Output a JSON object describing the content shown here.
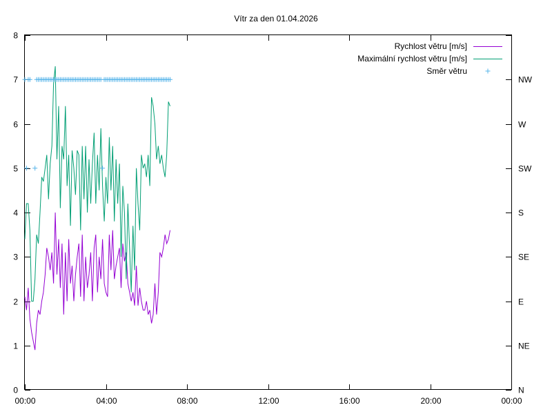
{
  "chart_data": {
    "type": "line",
    "title": "Vítr za den 01.04.2026",
    "xlabel": "",
    "ylabel": "",
    "grid": false,
    "legend_position": "top-right",
    "x_unit": "minutes since 00:00",
    "xlim": [
      0,
      1440
    ],
    "ylim": [
      0,
      8
    ],
    "x_ticks": [
      "00:00",
      "04:00",
      "08:00",
      "12:00",
      "16:00",
      "20:00",
      "00:00"
    ],
    "y_ticks": [
      "0",
      "1",
      "2",
      "3",
      "4",
      "5",
      "6",
      "7",
      "8"
    ],
    "y2_ticks": [
      "N",
      "NE",
      "E",
      "SE",
      "S",
      "SW",
      "W",
      "NW"
    ],
    "series": [
      {
        "name": "Rychlost větru [m/s]",
        "color": "#9400d3",
        "style": "line",
        "x": [
          0,
          5,
          10,
          15,
          20,
          25,
          30,
          35,
          40,
          45,
          50,
          55,
          60,
          65,
          70,
          75,
          80,
          85,
          90,
          95,
          100,
          105,
          110,
          115,
          120,
          125,
          130,
          135,
          140,
          145,
          150,
          155,
          160,
          165,
          170,
          175,
          180,
          185,
          190,
          195,
          200,
          205,
          210,
          215,
          220,
          225,
          230,
          235,
          240,
          245,
          250,
          255,
          260,
          265,
          270,
          275,
          280,
          285,
          290,
          295,
          300,
          305,
          310,
          315,
          320,
          325,
          330,
          335,
          340,
          345,
          350,
          355,
          360,
          365,
          370,
          375,
          380,
          385,
          390,
          395,
          400,
          405,
          410,
          415,
          420,
          425,
          430
        ],
        "y": [
          2.1,
          1.8,
          2.3,
          1.6,
          1.3,
          1.1,
          0.9,
          1.5,
          1.8,
          1.7,
          2.0,
          2.2,
          2.6,
          3.2,
          3.0,
          2.7,
          3.1,
          2.4,
          4.0,
          2.6,
          3.4,
          2.3,
          3.3,
          1.7,
          3.1,
          2.0,
          3.4,
          2.4,
          2.8,
          2.0,
          2.6,
          3.0,
          3.3,
          2.1,
          3.5,
          2.0,
          3.0,
          2.3,
          2.6,
          3.1,
          2.0,
          3.2,
          3.5,
          2.2,
          3.0,
          2.5,
          3.4,
          2.4,
          2.2,
          2.1,
          3.5,
          2.7,
          3.6,
          2.5,
          2.8,
          3.0,
          3.2,
          2.3,
          3.3,
          2.9,
          3.1,
          2.4,
          2.2,
          2.0,
          2.2,
          1.9,
          2.8,
          1.9,
          2.3,
          2.0,
          1.8,
          1.8,
          2.0,
          1.7,
          1.8,
          1.5,
          1.7,
          2.4,
          1.7,
          2.2,
          3.1,
          3.0,
          3.2,
          3.5,
          3.3,
          3.4,
          3.6
        ]
      },
      {
        "name": "Maximální rychlost větru [m/s]",
        "color": "#009e73",
        "style": "line",
        "x": [
          0,
          5,
          10,
          15,
          20,
          25,
          30,
          35,
          40,
          45,
          50,
          55,
          60,
          65,
          70,
          75,
          80,
          85,
          90,
          95,
          100,
          105,
          110,
          115,
          120,
          125,
          130,
          135,
          140,
          145,
          150,
          155,
          160,
          165,
          170,
          175,
          180,
          185,
          190,
          195,
          200,
          205,
          210,
          215,
          220,
          225,
          230,
          235,
          240,
          245,
          250,
          255,
          260,
          265,
          270,
          275,
          280,
          285,
          290,
          295,
          300,
          305,
          310,
          315,
          320,
          325,
          330,
          335,
          340,
          345,
          350,
          355,
          360,
          365,
          370,
          375,
          380,
          385,
          390,
          395,
          400,
          405,
          410,
          415,
          420,
          425,
          430
        ],
        "y": [
          3.4,
          4.2,
          4.2,
          3.6,
          2.0,
          2.0,
          2.5,
          3.5,
          3.3,
          4.0,
          4.8,
          4.7,
          5.0,
          5.3,
          4.3,
          5.1,
          5.5,
          6.9,
          7.3,
          5.2,
          6.4,
          4.1,
          5.5,
          5.2,
          6.4,
          4.6,
          5.3,
          3.7,
          5.4,
          5.0,
          4.4,
          5.4,
          5.3,
          3.6,
          5.5,
          4.3,
          5.5,
          4.0,
          5.2,
          4.2,
          5.1,
          5.8,
          4.2,
          5.3,
          4.5,
          5.9,
          4.6,
          3.8,
          4.8,
          4.2,
          5.7,
          4.5,
          5.5,
          3.8,
          5.2,
          4.2,
          5.1,
          3.0,
          4.6,
          4.0,
          2.5,
          4.2,
          3.2,
          2.2,
          3.7,
          2.7,
          5.0,
          4.2,
          3.6,
          5.3,
          5.0,
          5.1,
          4.8,
          5.3,
          4.6,
          6.6,
          6.4,
          6.0,
          5.2,
          5.5,
          5.1,
          5.3,
          5.0,
          4.8,
          5.3,
          6.5,
          6.4
        ]
      },
      {
        "name": "Směr větru",
        "color": "#56b4e9",
        "style": "points",
        "axis": "right",
        "x": [
          0,
          5,
          10,
          15,
          30,
          35,
          40,
          45,
          50,
          55,
          60,
          65,
          70,
          75,
          80,
          85,
          90,
          95,
          100,
          105,
          110,
          115,
          120,
          125,
          130,
          135,
          140,
          145,
          150,
          155,
          160,
          165,
          170,
          175,
          180,
          185,
          190,
          195,
          200,
          205,
          210,
          215,
          220,
          225,
          230,
          235,
          240,
          245,
          250,
          255,
          260,
          265,
          270,
          275,
          280,
          285,
          290,
          295,
          300,
          305,
          310,
          315,
          320,
          325,
          330,
          335,
          340,
          345,
          350,
          355,
          360,
          365,
          370,
          375,
          380,
          385,
          390,
          395,
          400,
          405,
          410,
          415,
          420,
          425,
          430
        ],
        "y": [
          "NW",
          "SW",
          "NW",
          "NW",
          "SW",
          "NW",
          "NW",
          "NW",
          "NW",
          "NW",
          "NW",
          "NW",
          "NW",
          "NW",
          "NW",
          "NW",
          "NW",
          "NW",
          "NW",
          "NW",
          "NW",
          "NW",
          "NW",
          "NW",
          "NW",
          "NW",
          "NW",
          "NW",
          "NW",
          "NW",
          "NW",
          "NW",
          "NW",
          "NW",
          "NW",
          "NW",
          "NW",
          "NW",
          "NW",
          "NW",
          "NW",
          "NW",
          "NW",
          "NW",
          "SW",
          "NW",
          "NW",
          "NW",
          "NW",
          "NW",
          "NW",
          "NW",
          "NW",
          "NW",
          "NW",
          "NW",
          "NW",
          "NW",
          "NW",
          "NW",
          "NW",
          "NW",
          "NW",
          "NW",
          "NW",
          "NW",
          "NW",
          "NW",
          "NW",
          "NW",
          "NW",
          "NW",
          "NW",
          "NW",
          "NW",
          "NW",
          "NW",
          "NW",
          "NW",
          "NW",
          "NW",
          "NW",
          "NW",
          "NW",
          "NW"
        ]
      }
    ]
  }
}
